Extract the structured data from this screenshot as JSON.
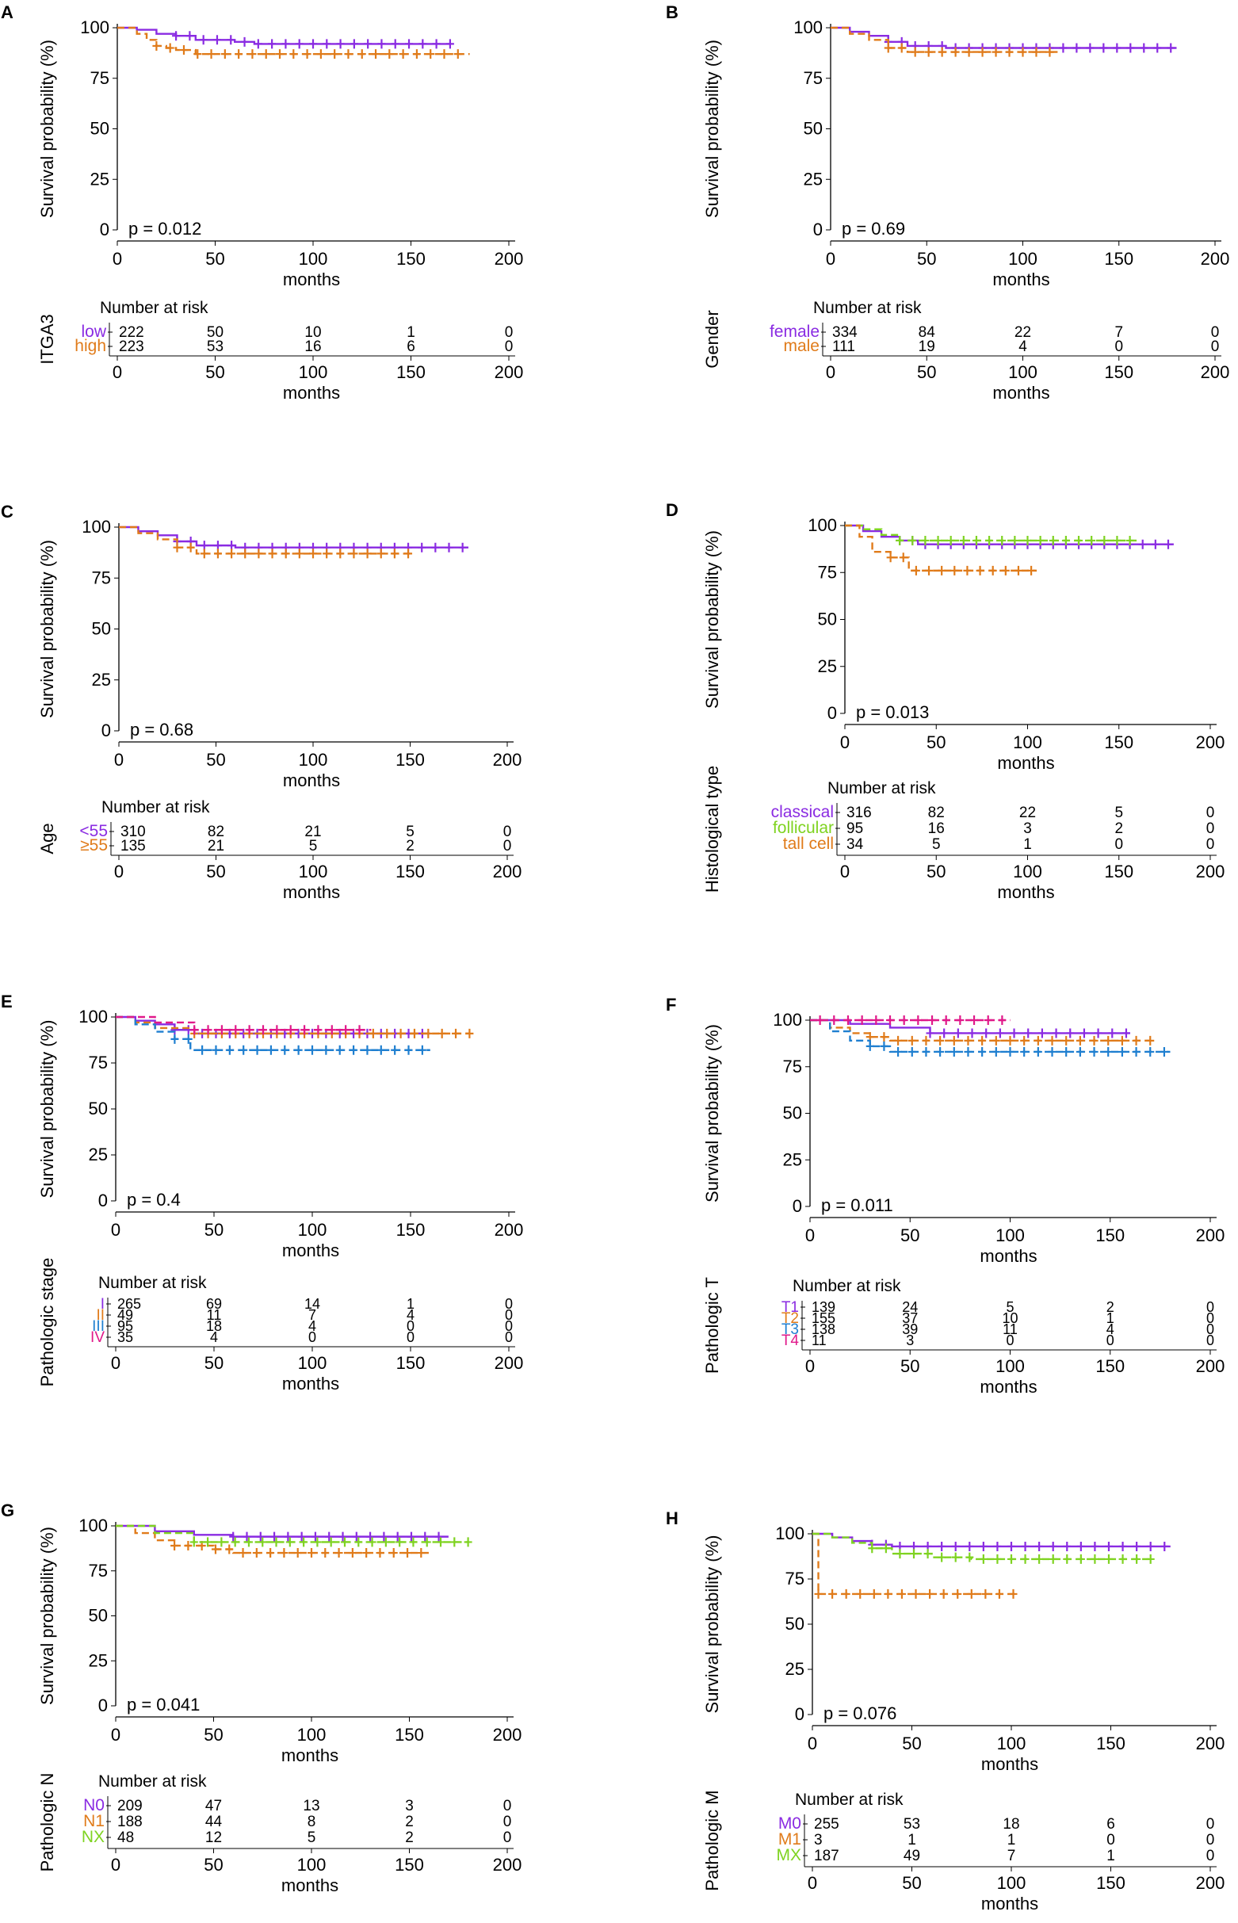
{
  "figure": {
    "xlabel": "months",
    "ylabel": "Survival probability (%)",
    "risk_title": "Number at risk",
    "x_ticks": [
      0,
      50,
      100,
      150,
      200
    ],
    "y_ticks": [
      0,
      25,
      50,
      75,
      100
    ],
    "colors": {
      "purple": "#8a2be2",
      "orange": "#e07b1a",
      "green": "#7fd321",
      "blue": "#1f7fd0",
      "magenta": "#e0198a"
    }
  },
  "chart_data": [
    {
      "panel": "A",
      "type": "line",
      "title": "",
      "xlabel": "months",
      "ylabel": "Survival probability (%)",
      "xlim": [
        0,
        200
      ],
      "ylim": [
        0,
        100
      ],
      "pvalue": "p = 0.012",
      "group_label": "ITGA3",
      "series": [
        {
          "name": "low",
          "color": "#8a2be2",
          "dashed": false,
          "x": [
            0,
            10,
            20,
            30,
            40,
            50,
            60,
            70,
            170
          ],
          "y": [
            100,
            99,
            97,
            96,
            94,
            94,
            93,
            92,
            92
          ],
          "censor_end": 170
        },
        {
          "name": "high",
          "color": "#e07b1a",
          "dashed": true,
          "x": [
            0,
            10,
            15,
            20,
            25,
            30,
            40,
            50,
            180
          ],
          "y": [
            100,
            97,
            94,
            91,
            90,
            89,
            87,
            87,
            87
          ],
          "censor_end": 180
        }
      ],
      "risk_table": [
        [
          "222",
          "50",
          "10",
          "1",
          "0"
        ],
        [
          "223",
          "53",
          "16",
          "6",
          "0"
        ]
      ]
    },
    {
      "panel": "B",
      "type": "line",
      "title": "",
      "xlabel": "months",
      "ylabel": "Survival probability (%)",
      "xlim": [
        0,
        200
      ],
      "ylim": [
        0,
        100
      ],
      "pvalue": "p = 0.69",
      "group_label": "Gender",
      "series": [
        {
          "name": "female",
          "color": "#8a2be2",
          "dashed": false,
          "x": [
            0,
            10,
            20,
            30,
            40,
            60,
            180
          ],
          "y": [
            100,
            98,
            96,
            93,
            91,
            90,
            90
          ],
          "censor_end": 180
        },
        {
          "name": "male",
          "color": "#e07b1a",
          "dashed": true,
          "x": [
            0,
            10,
            20,
            30,
            40,
            60,
            120
          ],
          "y": [
            100,
            97,
            94,
            90,
            88,
            88,
            88
          ],
          "censor_end": 120
        }
      ],
      "risk_table": [
        [
          "334",
          "84",
          "22",
          "7",
          "0"
        ],
        [
          "111",
          "19",
          "4",
          "0",
          "0"
        ]
      ]
    },
    {
      "panel": "C",
      "type": "line",
      "title": "",
      "xlabel": "months",
      "ylabel": "Survival probability (%)",
      "xlim": [
        0,
        200
      ],
      "ylim": [
        0,
        100
      ],
      "pvalue": "p = 0.68",
      "group_label": "Age",
      "series": [
        {
          "name": "<55",
          "color": "#8a2be2",
          "dashed": false,
          "x": [
            0,
            10,
            20,
            30,
            40,
            60,
            180
          ],
          "y": [
            100,
            98,
            96,
            93,
            91,
            90,
            90
          ],
          "censor_end": 180
        },
        {
          "name": "≥55",
          "color": "#e07b1a",
          "dashed": true,
          "x": [
            0,
            10,
            20,
            30,
            40,
            60,
            150
          ],
          "y": [
            100,
            97,
            94,
            90,
            87,
            87,
            87
          ],
          "censor_end": 150
        }
      ],
      "risk_table": [
        [
          "310",
          "82",
          "21",
          "5",
          "0"
        ],
        [
          "135",
          "21",
          "5",
          "2",
          "0"
        ]
      ]
    },
    {
      "panel": "D",
      "type": "line",
      "title": "",
      "xlabel": "months",
      "ylabel": "Survival probability (%)",
      "xlim": [
        0,
        200
      ],
      "ylim": [
        0,
        100
      ],
      "pvalue": "p = 0.013",
      "group_label": "Histological type",
      "series": [
        {
          "name": "classical",
          "color": "#8a2be2",
          "dashed": false,
          "x": [
            0,
            10,
            20,
            30,
            40,
            60,
            180
          ],
          "y": [
            100,
            97,
            94,
            92,
            90,
            90,
            90
          ],
          "censor_end": 180
        },
        {
          "name": "follicular",
          "color": "#7fd321",
          "dashed": true,
          "x": [
            0,
            10,
            20,
            30,
            160
          ],
          "y": [
            100,
            98,
            95,
            92,
            92
          ],
          "censor_end": 160
        },
        {
          "name": "tall cell",
          "color": "#e07b1a",
          "dashed": true,
          "x": [
            0,
            8,
            15,
            25,
            35,
            105
          ],
          "y": [
            100,
            94,
            86,
            83,
            76,
            76
          ],
          "censor_end": 105
        }
      ],
      "risk_table": [
        [
          "316",
          "82",
          "22",
          "5",
          "0"
        ],
        [
          "95",
          "16",
          "3",
          "2",
          "0"
        ],
        [
          "34",
          "5",
          "1",
          "0",
          "0"
        ]
      ]
    },
    {
      "panel": "E",
      "type": "line",
      "title": "",
      "xlabel": "months",
      "ylabel": "Survival probability (%)",
      "xlim": [
        0,
        200
      ],
      "ylim": [
        0,
        100
      ],
      "pvalue": "p = 0.4",
      "group_label": "Pathologic stage",
      "series": [
        {
          "name": "I",
          "color": "#8a2be2",
          "dashed": false,
          "x": [
            0,
            10,
            20,
            30,
            40,
            60,
            160
          ],
          "y": [
            100,
            98,
            96,
            93,
            91,
            91,
            91
          ],
          "censor_end": 160
        },
        {
          "name": "II",
          "color": "#e07b1a",
          "dashed": true,
          "x": [
            0,
            10,
            20,
            40,
            180
          ],
          "y": [
            100,
            97,
            94,
            91,
            91
          ],
          "censor_end": 180
        },
        {
          "name": "III",
          "color": "#1f7fd0",
          "dashed": true,
          "x": [
            0,
            10,
            20,
            30,
            38,
            160
          ],
          "y": [
            100,
            96,
            92,
            88,
            82,
            82
          ],
          "censor_end": 160
        },
        {
          "name": "IV",
          "color": "#e0198a",
          "dashed": true,
          "x": [
            0,
            20,
            40,
            130
          ],
          "y": [
            100,
            97,
            93,
            93
          ],
          "censor_end": 130
        }
      ],
      "risk_table": [
        [
          "265",
          "69",
          "14",
          "1",
          "0"
        ],
        [
          "49",
          "11",
          "7",
          "4",
          "0"
        ],
        [
          "95",
          "18",
          "4",
          "0",
          "0"
        ],
        [
          "35",
          "4",
          "0",
          "0",
          "0"
        ]
      ]
    },
    {
      "panel": "F",
      "type": "line",
      "title": "",
      "xlabel": "months",
      "ylabel": "Survival probability (%)",
      "xlim": [
        0,
        200
      ],
      "ylim": [
        0,
        100
      ],
      "pvalue": "p = 0.011",
      "group_label": "Pathologic T",
      "series": [
        {
          "name": "T1",
          "color": "#8a2be2",
          "dashed": false,
          "x": [
            0,
            20,
            40,
            60,
            160
          ],
          "y": [
            100,
            98,
            96,
            93,
            93
          ],
          "censor_end": 160
        },
        {
          "name": "T2",
          "color": "#e07b1a",
          "dashed": true,
          "x": [
            0,
            10,
            20,
            30,
            40,
            170
          ],
          "y": [
            100,
            96,
            93,
            91,
            89,
            89
          ],
          "censor_end": 170
        },
        {
          "name": "T3",
          "color": "#1f7fd0",
          "dashed": true,
          "x": [
            0,
            10,
            20,
            30,
            40,
            180
          ],
          "y": [
            100,
            94,
            89,
            86,
            83,
            83
          ],
          "censor_end": 180
        },
        {
          "name": "T4",
          "color": "#e0198a",
          "dashed": true,
          "x": [
            0,
            100
          ],
          "y": [
            100,
            100
          ],
          "censor_end": 100
        }
      ],
      "risk_table": [
        [
          "139",
          "24",
          "5",
          "2",
          "0"
        ],
        [
          "155",
          "37",
          "10",
          "1",
          "0"
        ],
        [
          "138",
          "39",
          "11",
          "4",
          "0"
        ],
        [
          "11",
          "3",
          "0",
          "0",
          "0"
        ]
      ]
    },
    {
      "panel": "G",
      "type": "line",
      "title": "",
      "xlabel": "months",
      "ylabel": "Survival probability (%)",
      "xlim": [
        0,
        200
      ],
      "ylim": [
        0,
        100
      ],
      "pvalue": "p = 0.041",
      "group_label": "Pathologic N",
      "series": [
        {
          "name": "N0",
          "color": "#8a2be2",
          "dashed": false,
          "x": [
            0,
            20,
            40,
            60,
            170
          ],
          "y": [
            100,
            97,
            95,
            94,
            94
          ],
          "censor_end": 170
        },
        {
          "name": "N1",
          "color": "#e07b1a",
          "dashed": true,
          "x": [
            0,
            10,
            20,
            30,
            50,
            60,
            160
          ],
          "y": [
            100,
            96,
            92,
            89,
            87,
            85,
            85
          ],
          "censor_end": 160
        },
        {
          "name": "NX",
          "color": "#7fd321",
          "dashed": true,
          "x": [
            0,
            20,
            40,
            180
          ],
          "y": [
            100,
            96,
            91,
            91
          ],
          "censor_end": 180
        }
      ],
      "risk_table": [
        [
          "209",
          "47",
          "13",
          "3",
          "0"
        ],
        [
          "188",
          "44",
          "8",
          "2",
          "0"
        ],
        [
          "48",
          "12",
          "5",
          "2",
          "0"
        ]
      ]
    },
    {
      "panel": "H",
      "type": "line",
      "title": "",
      "xlabel": "months",
      "ylabel": "Survival probability (%)",
      "xlim": [
        0,
        200
      ],
      "ylim": [
        0,
        100
      ],
      "pvalue": "p = 0.076",
      "group_label": "Pathologic M",
      "series": [
        {
          "name": "M0",
          "color": "#8a2be2",
          "dashed": false,
          "x": [
            0,
            10,
            20,
            30,
            40,
            60,
            180
          ],
          "y": [
            100,
            98,
            96,
            94,
            93,
            93,
            93
          ],
          "censor_end": 180
        },
        {
          "name": "M1",
          "color": "#e07b1a",
          "dashed": true,
          "x": [
            0,
            3,
            102
          ],
          "y": [
            100,
            66.7,
            66.7
          ],
          "censor_end": 102
        },
        {
          "name": "MX",
          "color": "#7fd321",
          "dashed": true,
          "x": [
            0,
            10,
            20,
            30,
            40,
            60,
            80,
            170
          ],
          "y": [
            100,
            98,
            95,
            92,
            89,
            87,
            86,
            86
          ],
          "censor_end": 170
        }
      ],
      "risk_table": [
        [
          "255",
          "53",
          "18",
          "6",
          "0"
        ],
        [
          "3",
          "1",
          "1",
          "0",
          "0"
        ],
        [
          "187",
          "49",
          "7",
          "1",
          "0"
        ]
      ]
    }
  ]
}
